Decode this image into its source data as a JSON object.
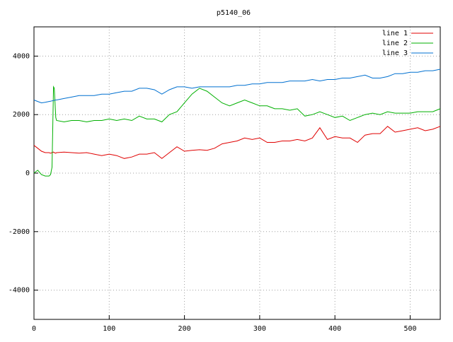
{
  "chart_data": {
    "type": "line",
    "title": "p5140_06",
    "x": [
      0,
      5,
      10,
      15,
      20,
      22,
      24,
      26,
      27,
      29,
      30,
      40,
      50,
      60,
      70,
      80,
      90,
      100,
      110,
      120,
      130,
      140,
      150,
      160,
      170,
      180,
      190,
      200,
      210,
      220,
      230,
      240,
      250,
      260,
      270,
      280,
      290,
      300,
      310,
      320,
      330,
      340,
      350,
      360,
      370,
      380,
      390,
      400,
      410,
      420,
      430,
      440,
      450,
      460,
      470,
      480,
      490,
      500,
      510,
      520,
      530,
      540
    ],
    "series": [
      {
        "name": "line 1",
        "color": "#e00000",
        "values": [
          950,
          850,
          750,
          700,
          700,
          680,
          700,
          720,
          700,
          680,
          700,
          720,
          700,
          680,
          700,
          650,
          600,
          650,
          600,
          500,
          550,
          650,
          650,
          700,
          500,
          700,
          900,
          750,
          780,
          800,
          780,
          850,
          1000,
          1050,
          1100,
          1200,
          1150,
          1200,
          1050,
          1050,
          1100,
          1100,
          1150,
          1100,
          1200,
          1550,
          1150,
          1250,
          1200,
          1200,
          1050,
          1300,
          1350,
          1350,
          1600,
          1400,
          1450,
          1500,
          1550,
          1450,
          1500,
          1600
        ]
      },
      {
        "name": "line 2",
        "color": "#00b000",
        "values": [
          0,
          100,
          -50,
          -100,
          -100,
          -50,
          200,
          2950,
          2900,
          1900,
          1800,
          1750,
          1800,
          1800,
          1750,
          1800,
          1800,
          1850,
          1800,
          1850,
          1800,
          1950,
          1850,
          1850,
          1750,
          2000,
          2100,
          2400,
          2700,
          2900,
          2800,
          2600,
          2400,
          2300,
          2400,
          2500,
          2400,
          2300,
          2300,
          2200,
          2200,
          2150,
          2200,
          1950,
          2000,
          2100,
          2000,
          1900,
          1950,
          1800,
          1900,
          2000,
          2050,
          2000,
          2100,
          2050,
          2050,
          2050,
          2100,
          2100,
          2100,
          2200
        ]
      },
      {
        "name": "line 3",
        "color": "#0070d0",
        "values": [
          2500,
          2450,
          2400,
          2420,
          2450,
          2460,
          2470,
          2480,
          2490,
          2500,
          2500,
          2550,
          2600,
          2650,
          2650,
          2650,
          2700,
          2700,
          2750,
          2800,
          2800,
          2900,
          2900,
          2850,
          2700,
          2850,
          2950,
          2950,
          2900,
          2950,
          2950,
          2950,
          2950,
          2950,
          3000,
          3000,
          3050,
          3050,
          3100,
          3100,
          3100,
          3150,
          3150,
          3150,
          3200,
          3150,
          3200,
          3200,
          3250,
          3250,
          3300,
          3350,
          3250,
          3250,
          3300,
          3400,
          3400,
          3450,
          3450,
          3500,
          3500,
          3550
        ]
      }
    ],
    "xlim": [
      0,
      540
    ],
    "ylim": [
      -5000,
      5000
    ],
    "xticks": [
      0,
      100,
      200,
      300,
      400,
      500
    ],
    "yticks": [
      -4000,
      -2000,
      0,
      2000,
      4000
    ],
    "grid": true,
    "legend": "top-right"
  }
}
